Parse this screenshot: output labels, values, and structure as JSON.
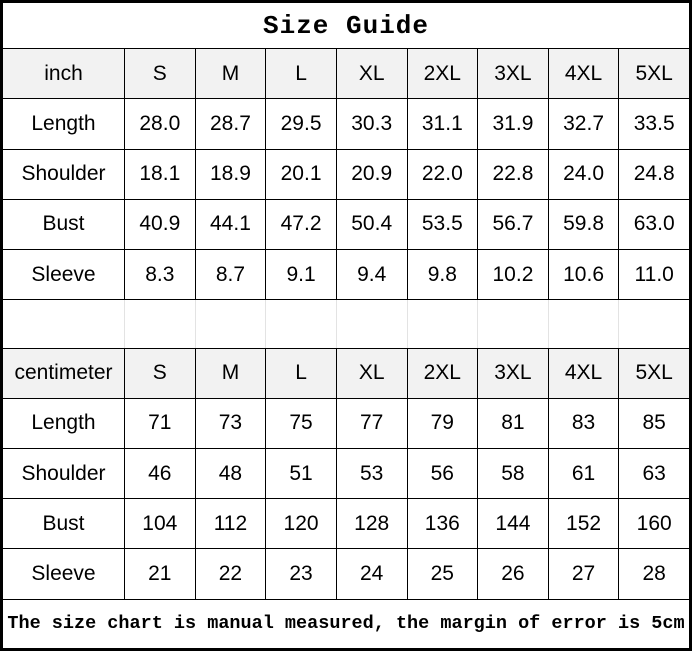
{
  "chart_data": {
    "type": "table",
    "title": "Size Guide",
    "note": "The size chart is manual measured, the margin of error is 5cm",
    "tables": [
      {
        "unit": "inch",
        "columns": [
          "S",
          "M",
          "L",
          "XL",
          "2XL",
          "3XL",
          "4XL",
          "5XL"
        ],
        "rows": [
          {
            "label": "Length",
            "values": [
              "28.0",
              "28.7",
              "29.5",
              "30.3",
              "31.1",
              "31.9",
              "32.7",
              "33.5"
            ]
          },
          {
            "label": "Shoulder",
            "values": [
              "18.1",
              "18.9",
              "20.1",
              "20.9",
              "22.0",
              "22.8",
              "24.0",
              "24.8"
            ]
          },
          {
            "label": "Bust",
            "values": [
              "40.9",
              "44.1",
              "47.2",
              "50.4",
              "53.5",
              "56.7",
              "59.8",
              "63.0"
            ]
          },
          {
            "label": "Sleeve",
            "values": [
              "8.3",
              "8.7",
              "9.1",
              "9.4",
              "9.8",
              "10.2",
              "10.6",
              "11.0"
            ]
          }
        ]
      },
      {
        "unit": "centimeter",
        "columns": [
          "S",
          "M",
          "L",
          "XL",
          "2XL",
          "3XL",
          "4XL",
          "5XL"
        ],
        "rows": [
          {
            "label": "Length",
            "values": [
              "71",
              "73",
              "75",
              "77",
              "79",
              "81",
              "83",
              "85"
            ]
          },
          {
            "label": "Shoulder",
            "values": [
              "46",
              "48",
              "51",
              "53",
              "56",
              "58",
              "61",
              "63"
            ]
          },
          {
            "label": "Bust",
            "values": [
              "104",
              "112",
              "120",
              "128",
              "136",
              "144",
              "152",
              "160"
            ]
          },
          {
            "label": "Sleeve",
            "values": [
              "21",
              "22",
              "23",
              "24",
              "25",
              "26",
              "27",
              "28"
            ]
          }
        ]
      }
    ],
    "layout": {
      "header_background": "#f2f2f2",
      "border_color": "#000000",
      "spacer_divider_color": "#e3e3e3",
      "background": "#ffffff",
      "text_color": "#000000"
    }
  }
}
